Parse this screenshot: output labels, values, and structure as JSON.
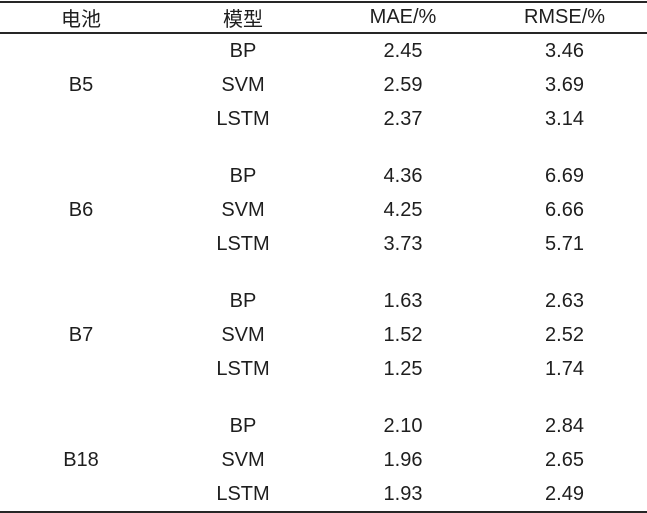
{
  "table": {
    "headers": [
      "电池",
      "模型",
      "MAE/%",
      "RMSE/%"
    ],
    "groups": [
      {
        "battery": "B5",
        "rows": [
          {
            "model": "BP",
            "mae": "2.45",
            "rmse": "3.46"
          },
          {
            "model": "SVM",
            "mae": "2.59",
            "rmse": "3.69"
          },
          {
            "model": "LSTM",
            "mae": "2.37",
            "rmse": "3.14"
          }
        ]
      },
      {
        "battery": "B6",
        "rows": [
          {
            "model": "BP",
            "mae": "4.36",
            "rmse": "6.69"
          },
          {
            "model": "SVM",
            "mae": "4.25",
            "rmse": "6.66"
          },
          {
            "model": "LSTM",
            "mae": "3.73",
            "rmse": "5.71"
          }
        ]
      },
      {
        "battery": "B7",
        "rows": [
          {
            "model": "BP",
            "mae": "1.63",
            "rmse": "2.63"
          },
          {
            "model": "SVM",
            "mae": "1.52",
            "rmse": "2.52"
          },
          {
            "model": "LSTM",
            "mae": "1.25",
            "rmse": "1.74"
          }
        ]
      },
      {
        "battery": "B18",
        "rows": [
          {
            "model": "BP",
            "mae": "2.10",
            "rmse": "2.84"
          },
          {
            "model": "SVM",
            "mae": "1.96",
            "rmse": "2.65"
          },
          {
            "model": "LSTM",
            "mae": "1.93",
            "rmse": "2.49"
          }
        ]
      }
    ]
  },
  "colors": {
    "text": "#1e1e1e",
    "rule": "#262626",
    "background": "#ffffff"
  },
  "chart_data": {
    "type": "table",
    "columns": [
      "电池",
      "模型",
      "MAE/%",
      "RMSE/%"
    ],
    "rows": [
      [
        "B5",
        "BP",
        2.45,
        3.46
      ],
      [
        "B5",
        "SVM",
        2.59,
        3.69
      ],
      [
        "B5",
        "LSTM",
        2.37,
        3.14
      ],
      [
        "B6",
        "BP",
        4.36,
        6.69
      ],
      [
        "B6",
        "SVM",
        4.25,
        6.66
      ],
      [
        "B6",
        "LSTM",
        3.73,
        5.71
      ],
      [
        "B7",
        "BP",
        1.63,
        2.63
      ],
      [
        "B7",
        "SVM",
        1.52,
        2.52
      ],
      [
        "B7",
        "LSTM",
        1.25,
        1.74
      ],
      [
        "B18",
        "BP",
        2.1,
        2.84
      ],
      [
        "B18",
        "SVM",
        1.96,
        2.65
      ],
      [
        "B18",
        "LSTM",
        1.93,
        2.49
      ]
    ]
  }
}
